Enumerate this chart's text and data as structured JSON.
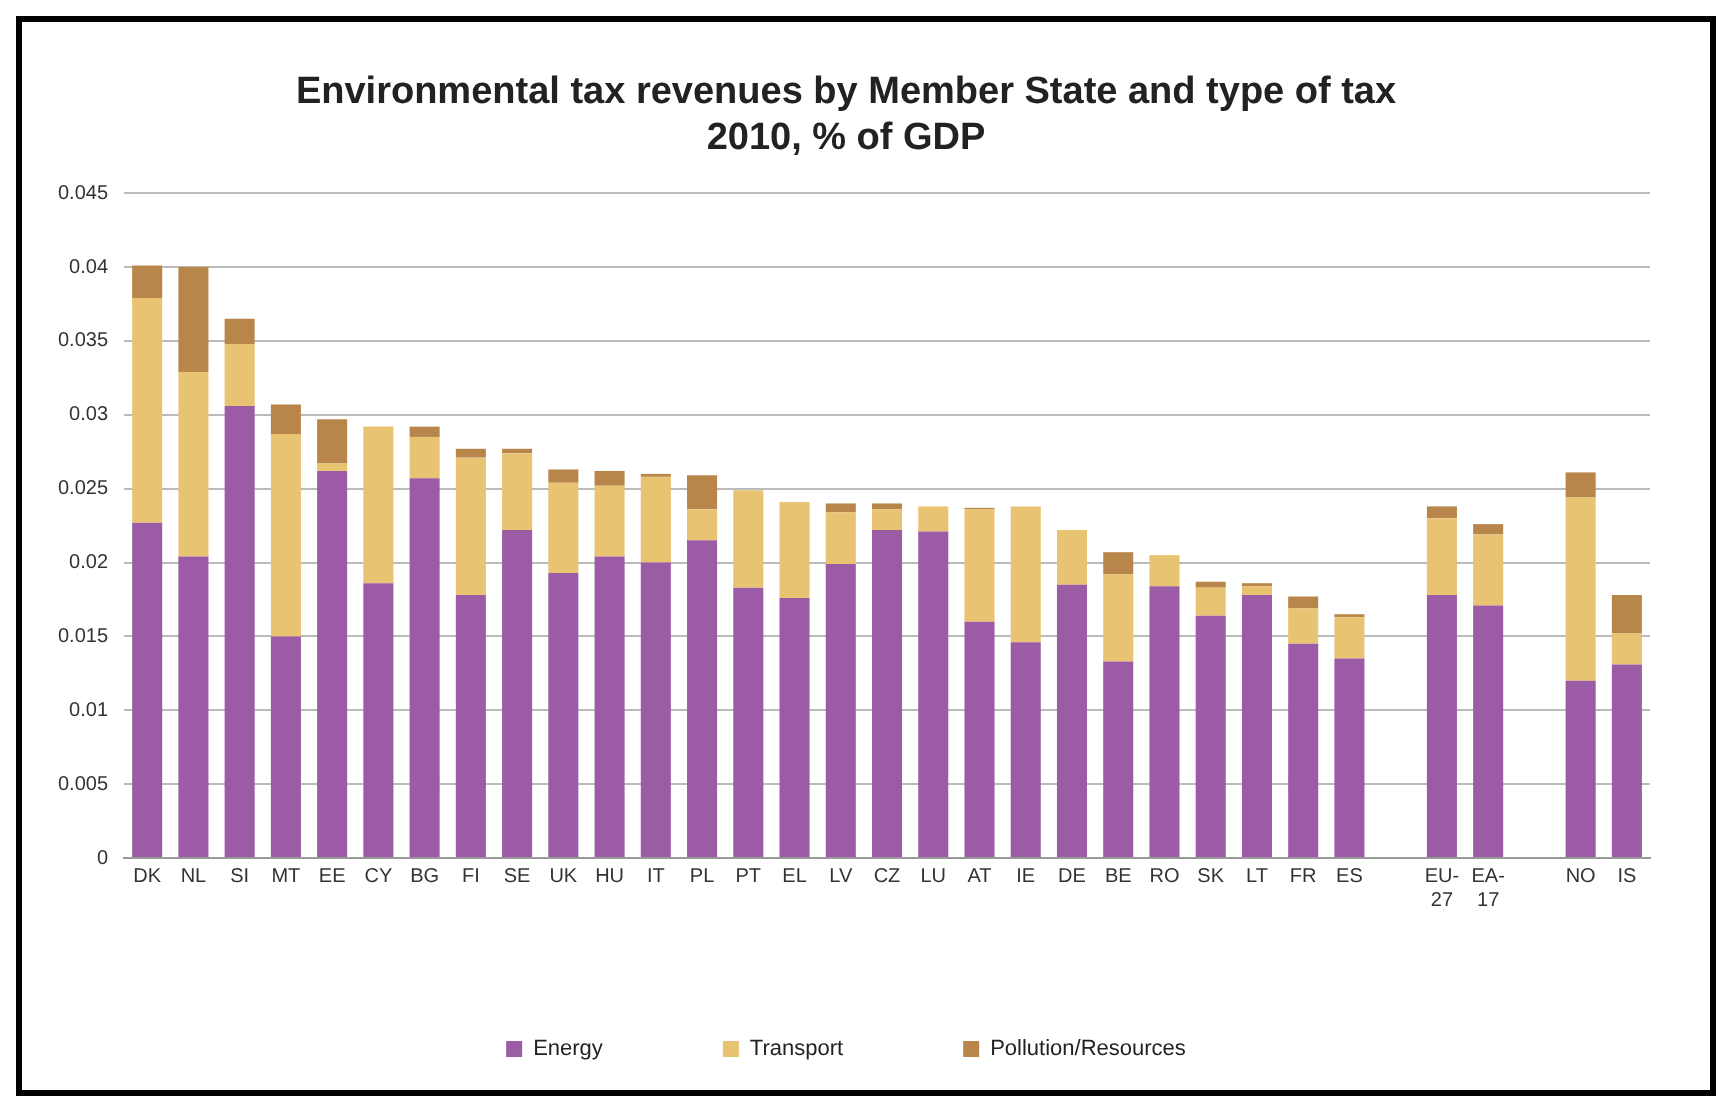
{
  "chart_data": {
    "type": "bar",
    "title": "Environmental tax revenues by Member State and type of tax",
    "subtitle": "2010, % of GDP",
    "categories": [
      "DK",
      "NL",
      "SI",
      "MT",
      "EE",
      "CY",
      "BG",
      "FI",
      "SE",
      "UK",
      "HU",
      "IT",
      "PL",
      "PT",
      "EL",
      "LV",
      "CZ",
      "LU",
      "AT",
      "IE",
      "DE",
      "BE",
      "RO",
      "SK",
      "LT",
      "FR",
      "ES",
      null,
      "EU-27",
      "EA-17",
      null,
      "NO",
      "IS"
    ],
    "stacked": true,
    "series": [
      {
        "name": "Energy",
        "color": "#9b5ba5",
        "values": [
          0.0227,
          0.0204,
          0.0306,
          0.015,
          0.0262,
          0.0186,
          0.0257,
          0.0178,
          0.0222,
          0.0193,
          0.0204,
          0.02,
          0.0215,
          0.0183,
          0.0176,
          0.0199,
          0.0222,
          0.0221,
          0.016,
          0.0146,
          0.0185,
          0.0133,
          0.0184,
          0.0164,
          0.0178,
          0.0145,
          0.0135,
          null,
          0.0178,
          0.0171,
          null,
          0.012,
          0.0131
        ]
      },
      {
        "name": "Transport",
        "color": "#e8c372",
        "values": [
          0.0152,
          0.0125,
          0.0042,
          0.0137,
          0.0005,
          0.0106,
          0.0028,
          0.0093,
          0.0052,
          0.0061,
          0.0048,
          0.0058,
          0.0021,
          0.0066,
          0.0065,
          0.0035,
          0.0014,
          0.0017,
          0.0076,
          0.0092,
          0.0037,
          0.0059,
          0.0021,
          0.0019,
          0.0006,
          0.0024,
          0.0028,
          null,
          0.0052,
          0.0048,
          null,
          0.0124,
          0.0021
        ]
      },
      {
        "name": "Pollution/Resources",
        "color": "#b8864b",
        "values": [
          0.0022,
          0.0071,
          0.0017,
          0.002,
          0.003,
          0,
          0.0007,
          0.0006,
          0.0003,
          0.0009,
          0.001,
          0.0002,
          0.0023,
          0,
          0,
          0.0006,
          0.0004,
          0,
          0.0001,
          0,
          0,
          0.0015,
          0,
          0.0004,
          0.0002,
          0.0008,
          0.0002,
          null,
          0.0008,
          0.0007,
          null,
          0.0017,
          0.0026
        ]
      }
    ],
    "ylim": [
      0,
      0.045
    ],
    "yticks": [
      0,
      0.005,
      0.01,
      0.015,
      0.02,
      0.025,
      0.03,
      0.035,
      0.04,
      0.045
    ],
    "grid": "y",
    "legend": "bottom"
  }
}
